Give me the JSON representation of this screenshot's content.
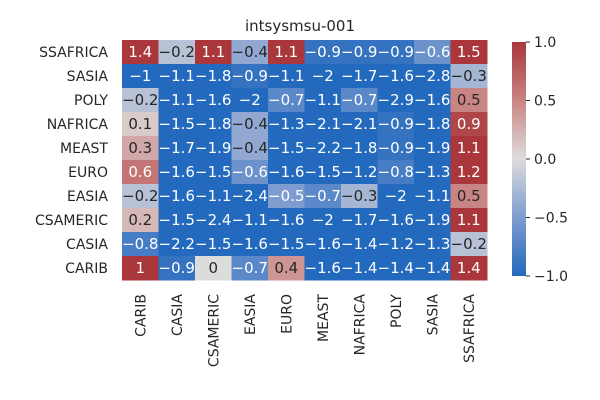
{
  "chart_data": {
    "type": "heatmap",
    "title": "intsysmsu-001",
    "rows": [
      "SSAFRICA",
      "SASIA",
      "POLY",
      "NAFRICA",
      "MEAST",
      "EURO",
      "EASIA",
      "CSAMERIC",
      "CASIA",
      "CARIB"
    ],
    "columns": [
      "CARIB",
      "CASIA",
      "CSAMERIC",
      "EASIA",
      "EURO",
      "MEAST",
      "NAFRICA",
      "POLY",
      "SASIA",
      "SSAFRICA"
    ],
    "values": [
      [
        1.4,
        -0.2,
        1.1,
        -0.4,
        1.1,
        -0.9,
        -0.9,
        -0.9,
        -0.6,
        1.5
      ],
      [
        -1,
        -1.1,
        -1.8,
        -0.9,
        -1.1,
        -2,
        -1.7,
        -1.6,
        -2.8,
        -0.3
      ],
      [
        -0.2,
        -1.1,
        -1.6,
        -2,
        -0.7,
        -1.1,
        -0.7,
        -2.9,
        -1.6,
        0.5
      ],
      [
        0.1,
        -1.5,
        -1.8,
        -0.4,
        -1.3,
        -2.1,
        -2.1,
        -0.9,
        -1.8,
        0.9
      ],
      [
        0.3,
        -1.7,
        -1.9,
        -0.4,
        -1.5,
        -2.2,
        -1.8,
        -0.9,
        -1.9,
        1.1
      ],
      [
        0.6,
        -1.6,
        -1.5,
        -0.6,
        -1.6,
        -1.5,
        -1.2,
        -0.8,
        -1.3,
        1.2
      ],
      [
        -0.2,
        -1.6,
        -1.1,
        -2.4,
        -0.5,
        -0.7,
        -0.3,
        -2,
        -1.1,
        0.5
      ],
      [
        0.2,
        -1.5,
        -2.4,
        -1.1,
        -1.6,
        -2,
        -1.7,
        -1.6,
        -1.9,
        1.1
      ],
      [
        -0.8,
        -2.2,
        -1.5,
        -1.6,
        -1.5,
        -1.6,
        -1.4,
        -1.2,
        -1.3,
        -0.2
      ],
      [
        1,
        -0.9,
        0,
        -0.7,
        0.4,
        -1.6,
        -1.4,
        -1.4,
        -1.4,
        1.4
      ]
    ],
    "vmin": -1.0,
    "vmax": 1.0,
    "colormap": "vlag",
    "colorbar_ticks": [
      1.0,
      0.5,
      0.0,
      -0.5,
      -1.0
    ],
    "colorbar_labels": [
      "1.0",
      "0.5",
      "0.0",
      "−0.5",
      "−1.0"
    ],
    "colors": {
      "low": "#2369bd",
      "mid": "#dddcdc",
      "high": "#a9373b",
      "text_dark": "#262626",
      "text_light": "#ffffff"
    }
  }
}
